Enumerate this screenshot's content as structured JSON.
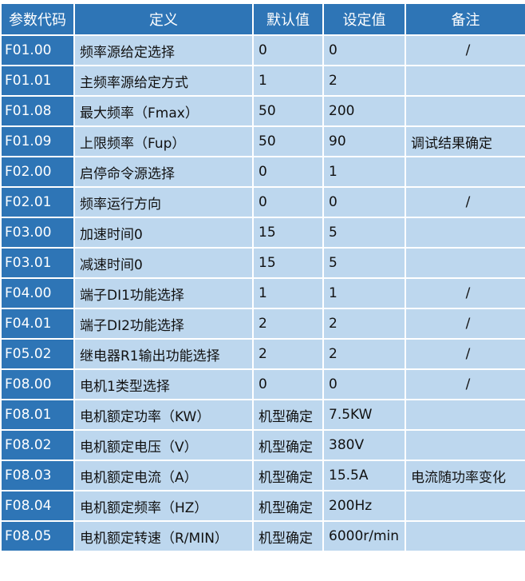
{
  "headers": [
    "参数代码",
    "定义",
    "默认值",
    "设定值",
    "备注"
  ],
  "rows": [
    [
      "F01.00",
      "频率源给定选择",
      "0",
      "0",
      "/"
    ],
    [
      "F01.01",
      "主频率源给定方式",
      "1",
      "2",
      ""
    ],
    [
      "F01.08",
      "最大频率（Fmax）",
      "50",
      "200",
      ""
    ],
    [
      "F01.09",
      "上限频率（Fup）",
      "50",
      "90",
      "调试结果确定"
    ],
    [
      "F02.00",
      "启停命令源选择",
      "0",
      "1",
      ""
    ],
    [
      "F02.01",
      "频率运行方向",
      "0",
      "0",
      "/"
    ],
    [
      "F03.00",
      "加速时间0",
      "15",
      "5",
      ""
    ],
    [
      "F03.01",
      "减速时间0",
      "15",
      "5",
      ""
    ],
    [
      "F04.00",
      "端子DI1功能选择",
      "1",
      "1",
      "/"
    ],
    [
      "F04.01",
      "端子DI2功能选择",
      "2",
      "2",
      "/"
    ],
    [
      "F05.02",
      "继电器R1输出功能选择",
      "2",
      "2",
      "/"
    ],
    [
      "F08.00",
      "电机1类型选择",
      "0",
      "0",
      "/"
    ],
    [
      "F08.01",
      "电机额定功率（KW）",
      "机型确定",
      "7.5KW",
      ""
    ],
    [
      "F08.02",
      "电机额定电压（V）",
      "机型确定",
      "380V",
      ""
    ],
    [
      "F08.03",
      "电机额定电流（A）",
      "机型确定",
      "15.5A",
      "电流随功率变化"
    ],
    [
      "F08.04",
      "电机额定频率（HZ）",
      "机型确定",
      "200Hz",
      ""
    ],
    [
      "F08.05",
      "电机额定转速（R/MIN）",
      "机型确定",
      "6000r/min",
      ""
    ]
  ],
  "colors": {
    "header": "#2e75b6",
    "cell": "#bdd7ee"
  }
}
